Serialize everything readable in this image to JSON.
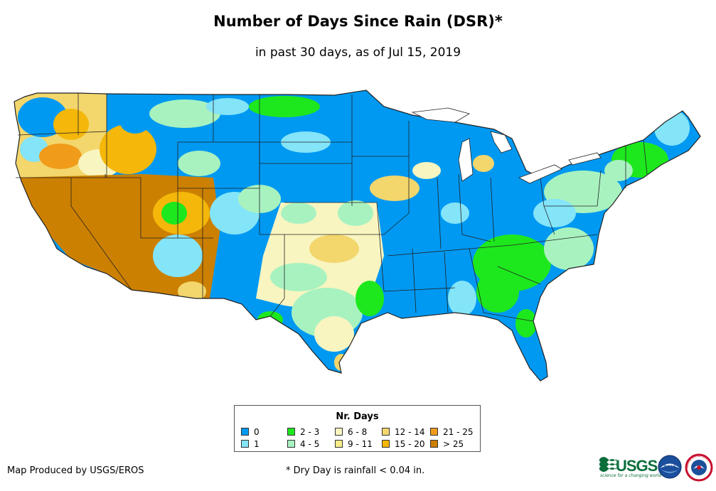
{
  "title": "Number of Days Since Rain (DSR)*",
  "subtitle": "in past 30 days, as of Jul 15, 2019",
  "legend": {
    "title": "Nr. Days",
    "items": [
      {
        "label": "0",
        "color": "#0099f2"
      },
      {
        "label": "1",
        "color": "#84e4f8"
      },
      {
        "label": "2 - 3",
        "color": "#1de81d"
      },
      {
        "label": "4 - 5",
        "color": "#a8f2c0"
      },
      {
        "label": "6 - 8",
        "color": "#f8f5c0"
      },
      {
        "label": "9 - 11",
        "color": "#f7ee8a"
      },
      {
        "label": "12 - 14",
        "color": "#f3d66c"
      },
      {
        "label": "15 - 20",
        "color": "#f4b70a"
      },
      {
        "label": "21 - 25",
        "color": "#f09c1a"
      },
      {
        "label": "> 25",
        "color": "#cc8002"
      }
    ]
  },
  "credit": "Map Produced by USGS/EROS",
  "footnote": "* Dry Day is rainfall < 0.04 in.",
  "logos": {
    "usgs": "USGS",
    "usgs_tagline": "science for a changing world",
    "noaa": "noaa",
    "nws_text": "NATIONAL WEATHER SERVICE"
  }
}
